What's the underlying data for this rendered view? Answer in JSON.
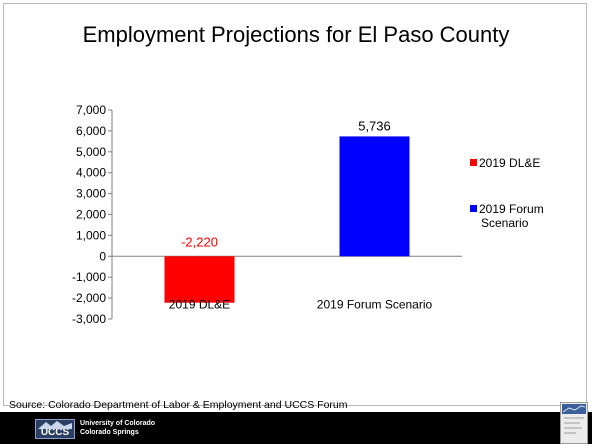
{
  "slide": {
    "title": "Employment Projections for El Paso County",
    "source": "Source: Colorado Department of Labor & Employment and UCCS Forum"
  },
  "footer": {
    "logo_text": "UCCS",
    "line1": "University of Colorado",
    "line2": "Colorado Springs"
  },
  "chart_data": {
    "type": "bar",
    "categories": [
      "2019 DL&E",
      "2019 Forum Scenario"
    ],
    "series": [
      {
        "name": "2019 DL&E",
        "color": "#ff0000",
        "values": [
          -2220,
          null
        ],
        "labels": [
          "-2,220",
          ""
        ],
        "label_color": "#ff0000"
      },
      {
        "name": "2019 Forum Scenario",
        "color": "#0000ff",
        "values": [
          null,
          5736
        ],
        "labels": [
          "",
          "5,736"
        ],
        "label_color": "#000000"
      }
    ],
    "ylim": [
      -3000,
      7000
    ],
    "yticks": [
      7000,
      6000,
      5000,
      4000,
      3000,
      2000,
      1000,
      0,
      -1000,
      -2000,
      -3000
    ],
    "ytick_labels": [
      "7,000",
      "6,000",
      "5,000",
      "4,000",
      "3,000",
      "2,000",
      "1,000",
      "0",
      "-1,000",
      "-2,000",
      "-3,000"
    ],
    "legend": [
      {
        "lines": [
          "2019 DL&E"
        ],
        "color": "#ff0000"
      },
      {
        "lines": [
          "2019 Forum",
          "Scenario"
        ],
        "color": "#0000ff"
      }
    ],
    "legend_position": "right",
    "grid": false
  }
}
